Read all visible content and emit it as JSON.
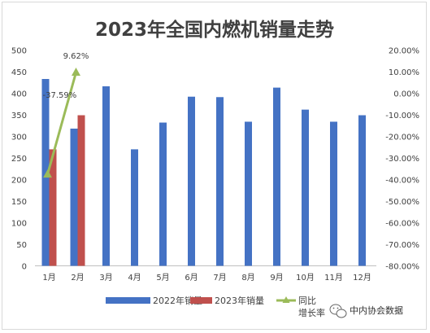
{
  "watermark": {
    "text": "中内协会数据",
    "icon": "wechat-icon"
  },
  "chart_data": {
    "type": "bar",
    "title": "2023年全国内燃机销量走势",
    "categories": [
      "1月",
      "2月",
      "3月",
      "4月",
      "5月",
      "6月",
      "7月",
      "8月",
      "9月",
      "10月",
      "11月",
      "12月"
    ],
    "series": [
      {
        "name": "2022年销量",
        "type": "bar",
        "color": "#4472c4",
        "axis": "left",
        "values": [
          433,
          318,
          416,
          270,
          332,
          392,
          391,
          334,
          413,
          362,
          334,
          349
        ]
      },
      {
        "name": "2023年销量",
        "type": "bar",
        "color": "#c0504d",
        "axis": "left",
        "values": [
          270,
          349,
          null,
          null,
          null,
          null,
          null,
          null,
          null,
          null,
          null,
          null
        ]
      },
      {
        "name": "同比增长率",
        "type": "line",
        "color": "#9bbb59",
        "axis": "right",
        "values": [
          -37.59,
          9.62,
          null,
          null,
          null,
          null,
          null,
          null,
          null,
          null,
          null,
          null
        ]
      }
    ],
    "data_labels": [
      "-37.59%",
      "9.62%"
    ],
    "ylim_left": [
      0,
      500
    ],
    "yticks_left": [
      "0",
      "50",
      "100",
      "150",
      "200",
      "250",
      "300",
      "350",
      "400",
      "450",
      "500"
    ],
    "ylim_right": [
      -80,
      20
    ],
    "yticks_right": [
      "-80.00%",
      "-70.00%",
      "-60.00%",
      "-50.00%",
      "-40.00%",
      "-30.00%",
      "-20.00%",
      "-10.00%",
      "0.00%",
      "10.00%",
      "20.00%"
    ],
    "legend_position": "bottom",
    "grid": false
  }
}
